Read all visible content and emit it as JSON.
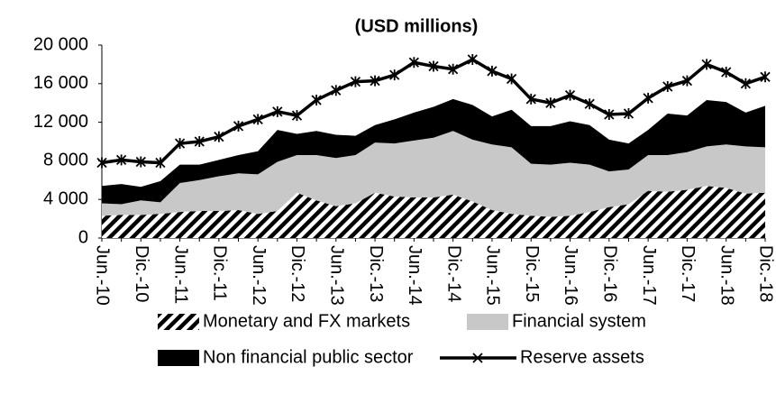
{
  "chart_data": {
    "type": "stacked-area-line",
    "title": "(USD millions)",
    "categories": [
      "Jun.-10",
      null,
      "Dic.-10",
      null,
      "Jun.-11",
      null,
      "Dic.-11",
      null,
      "Jun.-12",
      null,
      "Dic.-12",
      null,
      "Jun.-13",
      null,
      "Dic.-13",
      null,
      "Jun.-14",
      null,
      "Dic.-14",
      null,
      "Jun.-15",
      null,
      "Dic.-15",
      null,
      "Jun.-16",
      null,
      "Dic.-16",
      null,
      "Jun.-17",
      null,
      "Dic.-17",
      null,
      "Jun.-18",
      null,
      "Dic.-18"
    ],
    "series": [
      {
        "name": "Monetary and FX markets",
        "type": "area",
        "color": "#000000",
        "pattern": "hatch",
        "values": [
          2300,
          2400,
          2400,
          2500,
          2700,
          2800,
          2800,
          2900,
          2500,
          2800,
          4700,
          3900,
          3300,
          3600,
          4700,
          4300,
          4200,
          4200,
          4500,
          3800,
          2900,
          2500,
          2300,
          2200,
          2300,
          2700,
          3200,
          3500,
          4900,
          4800,
          5000,
          5400,
          5200,
          4600,
          4700
        ]
      },
      {
        "name": "Financial system",
        "type": "area",
        "color": "#c8c8c8",
        "values": [
          1300,
          1100,
          1500,
          1200,
          3000,
          3200,
          3600,
          3800,
          4100,
          5100,
          3900,
          4700,
          5000,
          5000,
          5200,
          5500,
          5900,
          6200,
          6600,
          6400,
          6800,
          6900,
          5400,
          5400,
          5500,
          4900,
          3700,
          3600,
          3700,
          3800,
          3900,
          4100,
          4500,
          4900,
          4700
        ]
      },
      {
        "name": "Non financial public sector",
        "type": "area",
        "color": "#000000",
        "values": [
          1800,
          2100,
          1400,
          2200,
          1900,
          1600,
          1700,
          1900,
          2400,
          3300,
          2200,
          2500,
          2400,
          2000,
          1800,
          2500,
          2900,
          3200,
          3300,
          3600,
          2900,
          3900,
          3900,
          4000,
          4300,
          4100,
          3300,
          2700,
          2600,
          4300,
          3800,
          4800,
          4400,
          3500,
          4300
        ]
      },
      {
        "name": "Reserve assets",
        "type": "line",
        "color": "#000000",
        "values": [
          7800,
          8100,
          7900,
          7800,
          9800,
          10000,
          10500,
          11600,
          12300,
          13100,
          12700,
          14300,
          15300,
          16200,
          16300,
          16900,
          18200,
          17800,
          17500,
          18500,
          17300,
          16500,
          14400,
          14000,
          14800,
          13900,
          12800,
          12900,
          14500,
          15700,
          16300,
          18000,
          17200,
          16000,
          16700
        ]
      }
    ],
    "ylim": [
      0,
      20000
    ],
    "yticks": [
      0,
      {
        "value": 4000,
        "label": "4 000"
      },
      {
        "value": 8000,
        "label": "8 000"
      },
      {
        "value": 12000,
        "label": "12 000"
      },
      {
        "value": 16000,
        "label": "16 000"
      },
      {
        "value": 20000,
        "label": "20 000"
      }
    ],
    "grid": false,
    "legend": "bottom"
  }
}
